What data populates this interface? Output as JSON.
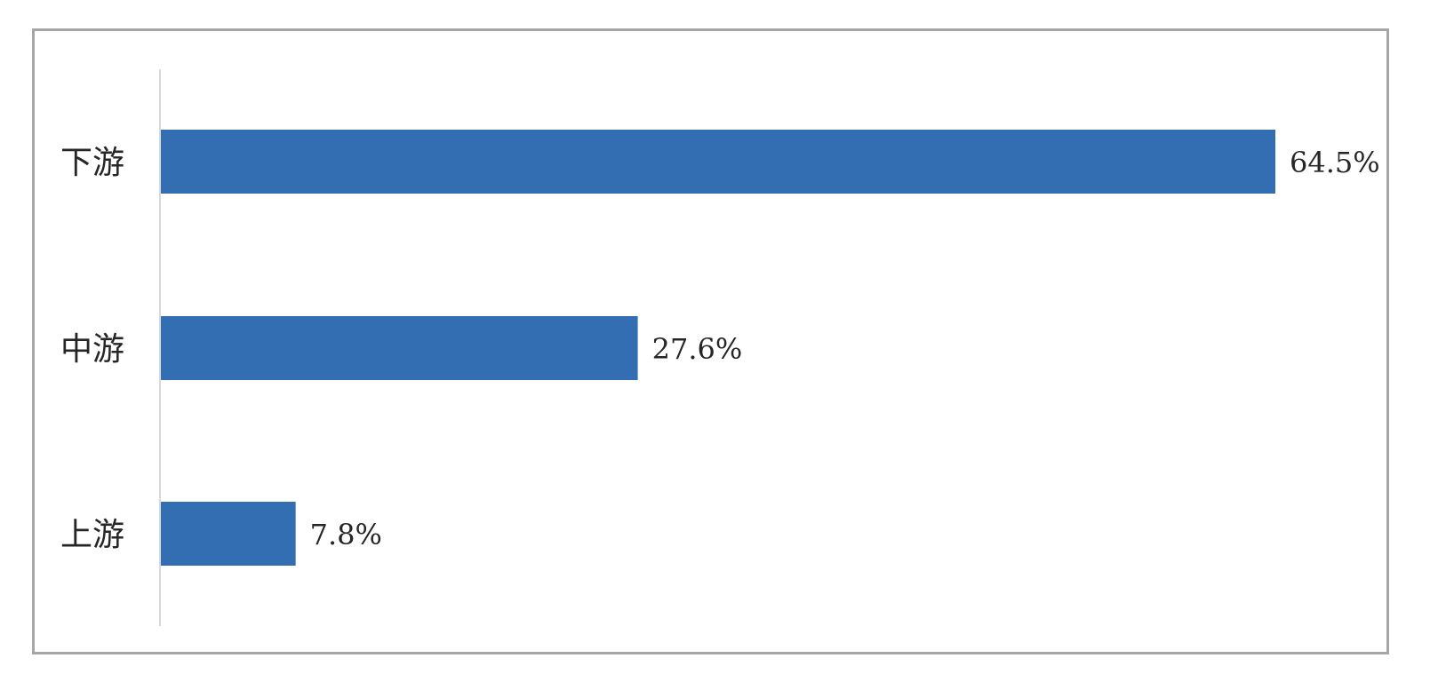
{
  "chart_data": {
    "type": "bar",
    "orientation": "horizontal",
    "categories": [
      "下游",
      "中游",
      "上游"
    ],
    "values": [
      64.5,
      27.6,
      7.8
    ],
    "value_labels": [
      "64.5%",
      "27.6%",
      "7.8%"
    ],
    "title": "",
    "xlabel": "",
    "ylabel": "",
    "xlim": [
      0,
      64.5
    ],
    "grid": false,
    "legend": "none",
    "bar_color": "#346EB2",
    "axis_color": "#d9d9d9"
  }
}
